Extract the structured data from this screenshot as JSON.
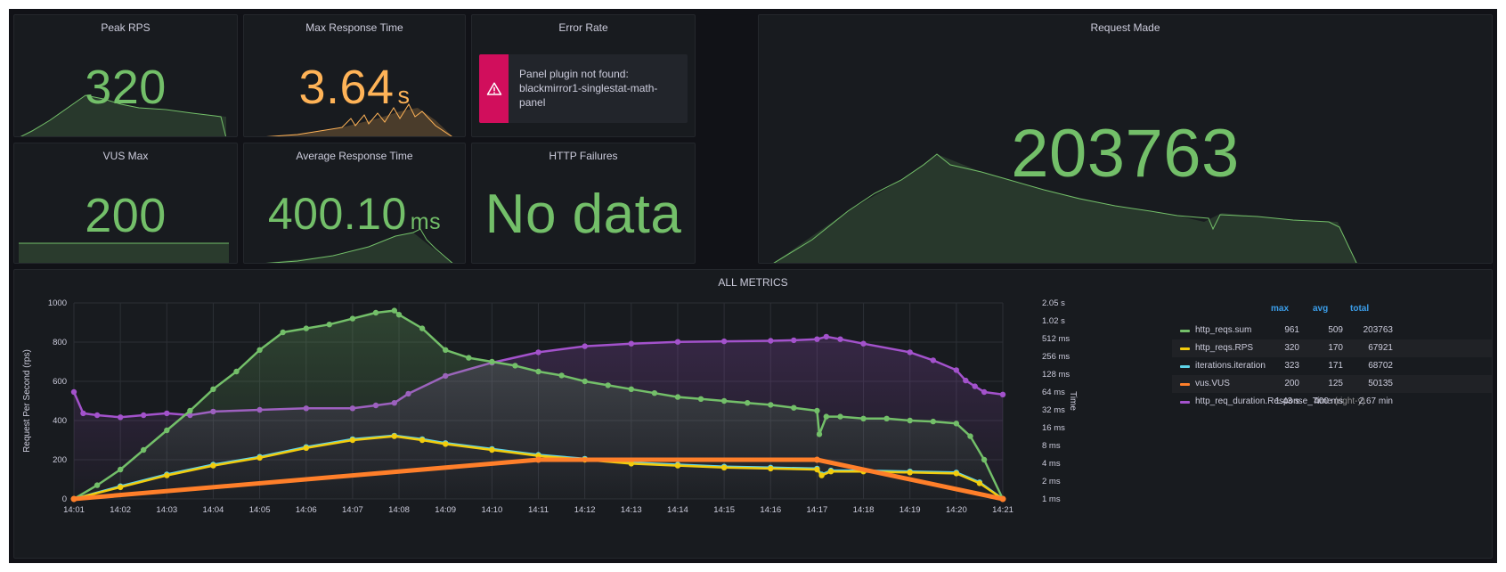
{
  "panels": {
    "peak_rps": {
      "title": "Peak RPS",
      "value": "320",
      "color": "#73bf69"
    },
    "max_response": {
      "title": "Max Response Time",
      "value": "3.64",
      "unit": "s",
      "color": "#ffb357"
    },
    "error_rate": {
      "title": "Error Rate",
      "message": "Panel plugin not found: blackmirror1-singlestat-math-panel",
      "icon": "warning-icon"
    },
    "request_made": {
      "title": "Request Made",
      "value": "203763",
      "color": "#73bf69"
    },
    "vus_max": {
      "title": "VUS Max",
      "value": "200",
      "color": "#73bf69"
    },
    "avg_response": {
      "title": "Average Response Time",
      "value": "400.10",
      "unit": "ms",
      "color": "#73bf69"
    },
    "http_failures": {
      "title": "HTTP Failures",
      "value": "No data",
      "color": "#73bf69"
    }
  },
  "all_metrics": {
    "title": "ALL METRICS",
    "legend_headers": {
      "max": "max",
      "avg": "avg",
      "total": "total"
    },
    "legend": [
      {
        "name": "http_reqs.sum",
        "suffix": "",
        "color": "#73bf69",
        "max": "961",
        "avg": "509",
        "total": "203763"
      },
      {
        "name": "http_reqs.RPS",
        "suffix": "",
        "color": "#f2cc0c",
        "max": "320",
        "avg": "170",
        "total": "67921"
      },
      {
        "name": "iterations.iteration",
        "suffix": "",
        "color": "#5ed4e8",
        "max": "323",
        "avg": "171",
        "total": "68702"
      },
      {
        "name": "vus.VUS",
        "suffix": "",
        "color": "#ff7f2a",
        "max": "200",
        "avg": "125",
        "total": "50135"
      },
      {
        "name": "http_req_duration.Response_Time",
        "suffix": "(right-y)",
        "color": "#a352cc",
        "max": "1.43 s",
        "avg": "400 ms",
        "total": "2.67 min"
      }
    ]
  },
  "chart_data": {
    "type": "line",
    "ylabel": "Request Per Second (rps)",
    "y2label": "Time",
    "ylim": [
      0,
      1000
    ],
    "y_ticks": [
      "0",
      "200",
      "400",
      "600",
      "800",
      "1000"
    ],
    "y2_ticks": [
      "1 ms",
      "2 ms",
      "4 ms",
      "8 ms",
      "16 ms",
      "32 ms",
      "64 ms",
      "128 ms",
      "256 ms",
      "512 ms",
      "1.02 s",
      "2.05 s"
    ],
    "x_ticks": [
      "14:01",
      "14:02",
      "14:03",
      "14:04",
      "14:05",
      "14:06",
      "14:07",
      "14:08",
      "14:09",
      "14:10",
      "14:11",
      "14:12",
      "14:13",
      "14:14",
      "14:15",
      "14:16",
      "14:17",
      "14:18",
      "14:19",
      "14:20",
      "14:21"
    ],
    "grid": true,
    "series": [
      {
        "name": "http_reqs.sum",
        "color": "#73bf69",
        "x": [
          0,
          0.5,
          1,
          1.5,
          2,
          2.5,
          3,
          3.5,
          4,
          4.5,
          5,
          5.5,
          6,
          6.5,
          6.9,
          7,
          7.5,
          8,
          8.5,
          9,
          9.5,
          10,
          10.5,
          11,
          11.5,
          12,
          12.5,
          13,
          13.5,
          14,
          14.5,
          15,
          15.5,
          16,
          16.05,
          16.2,
          16.5,
          17,
          17.5,
          18,
          18.5,
          19,
          19.3,
          19.6,
          20
        ],
        "values": [
          0,
          70,
          150,
          250,
          350,
          450,
          560,
          650,
          760,
          850,
          870,
          890,
          920,
          950,
          961,
          940,
          870,
          760,
          720,
          700,
          680,
          650,
          630,
          600,
          580,
          560,
          540,
          520,
          510,
          500,
          490,
          480,
          465,
          450,
          330,
          420,
          420,
          410,
          410,
          400,
          395,
          385,
          320,
          200,
          0
        ]
      },
      {
        "name": "http_reqs.RPS",
        "color": "#f2cc0c",
        "x": [
          0,
          1,
          2,
          3,
          4,
          5,
          6,
          6.9,
          7.5,
          8,
          9,
          10,
          11,
          12,
          13,
          14,
          15,
          16,
          16.1,
          16.3,
          17,
          18,
          19,
          19.5,
          20
        ],
        "values": [
          0,
          60,
          120,
          170,
          210,
          260,
          300,
          320,
          300,
          280,
          250,
          220,
          200,
          180,
          170,
          160,
          155,
          150,
          120,
          140,
          140,
          135,
          130,
          80,
          0
        ]
      },
      {
        "name": "iterations.iteration",
        "color": "#5ed4e8",
        "x": [
          0,
          1,
          2,
          3,
          4,
          5,
          6,
          6.9,
          7.5,
          8,
          9,
          10,
          11,
          12,
          13,
          14,
          15,
          16,
          16.1,
          16.3,
          17,
          18,
          19,
          19.5,
          20
        ],
        "values": [
          0,
          65,
          125,
          175,
          215,
          265,
          305,
          323,
          305,
          285,
          255,
          225,
          205,
          185,
          175,
          165,
          160,
          155,
          125,
          145,
          145,
          140,
          135,
          85,
          0
        ]
      },
      {
        "name": "vus.VUS",
        "color": "#ff7f2a",
        "x": [
          0,
          10,
          16,
          20
        ],
        "values": [
          0,
          200,
          200,
          0
        ]
      },
      {
        "name": "http_req_duration.Response_Time",
        "color": "#a352cc",
        "axis": "right-y",
        "x": [
          0,
          0.2,
          0.5,
          1,
          1.5,
          2,
          2.5,
          3,
          4,
          5,
          6,
          6.5,
          6.9,
          7.2,
          8,
          9,
          10,
          11,
          12,
          13,
          14,
          15,
          15.5,
          16,
          16.2,
          16.5,
          17,
          18,
          18.5,
          19,
          19.2,
          19.4,
          19.6,
          20
        ],
        "values": [
          0.064,
          0.028,
          0.026,
          0.024,
          0.026,
          0.028,
          0.026,
          0.03,
          0.032,
          0.034,
          0.034,
          0.038,
          0.042,
          0.06,
          0.12,
          0.2,
          0.3,
          0.38,
          0.42,
          0.45,
          0.46,
          0.47,
          0.48,
          0.5,
          0.55,
          0.5,
          0.42,
          0.3,
          0.22,
          0.15,
          0.1,
          0.08,
          0.064,
          0.058
        ]
      }
    ]
  }
}
